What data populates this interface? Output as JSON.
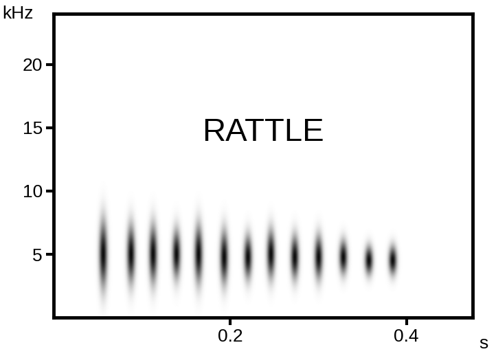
{
  "chart_data": {
    "type": "spectrogram",
    "annotation": "RATTLE",
    "x_label": "s",
    "y_label": "kHz",
    "xlim": [
      0,
      0.475
    ],
    "ylim": [
      0,
      24
    ],
    "xticks": [
      0.2,
      0.4
    ],
    "yticks": [
      5,
      10,
      15,
      20
    ],
    "color": "#000000",
    "pulse_times": [
      0.056,
      0.0875,
      0.1125,
      0.139,
      0.164,
      0.193,
      0.22,
      0.246,
      0.273,
      0.3,
      0.328,
      0.357,
      0.384
    ],
    "pulse_low": [
      1.5,
      2,
      2,
      2.5,
      2,
      2,
      2.5,
      2.5,
      2.5,
      2.5,
      3,
      3,
      3
    ],
    "pulse_high": [
      8.5,
      8,
      8,
      7.5,
      8,
      7.5,
      7,
      7.5,
      7,
      7,
      6.5,
      6,
      6
    ]
  }
}
